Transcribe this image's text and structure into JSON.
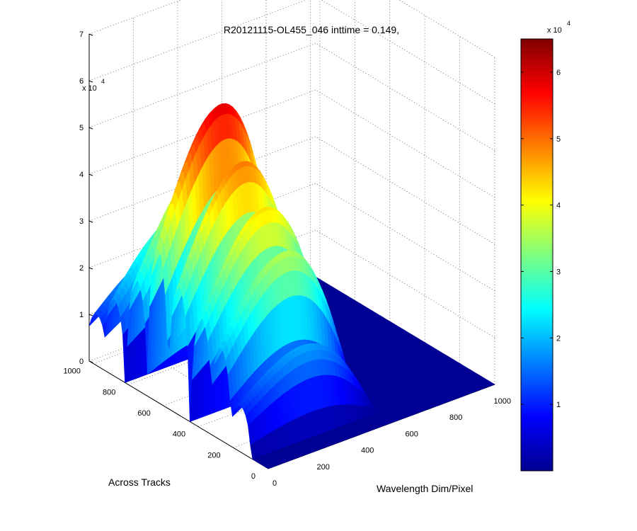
{
  "chart_data": {
    "type": "surface3d",
    "title": "R20121115-OL455_046 inttime = 0.149,",
    "xlabel": "Wavelength Dim/Pixel",
    "ylabel": "Across Tracks",
    "zlabel": "",
    "xlim": [
      0,
      1024
    ],
    "ylim": [
      0,
      1024
    ],
    "zlim": [
      0,
      70000
    ],
    "x_ticks": [
      "0",
      "200",
      "400",
      "600",
      "800",
      "1000"
    ],
    "y_ticks": [
      "0",
      "200",
      "400",
      "600",
      "800",
      "1000"
    ],
    "z_ticks": [
      "0",
      "1",
      "2",
      "3",
      "4",
      "5",
      "6",
      "7"
    ],
    "z_exponent": {
      "base": "x 10",
      "power": "4"
    },
    "grid": true,
    "colormap": "jet",
    "colorbar": {
      "range": [
        0,
        65000
      ],
      "ticks": [
        "1",
        "2",
        "3",
        "4",
        "5",
        "6"
      ],
      "exponent": {
        "base": "x 10",
        "power": "4"
      },
      "placement": "right"
    },
    "surface_profile": {
      "wavelength_extent": [
        0,
        580
      ],
      "across_track_peaks": [
        {
          "center": 630,
          "height": 60000
        },
        {
          "center": 510,
          "height": 50000
        },
        {
          "center": 380,
          "height": 43000
        },
        {
          "center": 750,
          "height": 43000
        },
        {
          "center": 270,
          "height": 36000
        },
        {
          "center": 880,
          "height": 30000
        },
        {
          "center": 160,
          "height": 18000
        },
        {
          "center": 980,
          "height": 20000
        }
      ]
    }
  }
}
